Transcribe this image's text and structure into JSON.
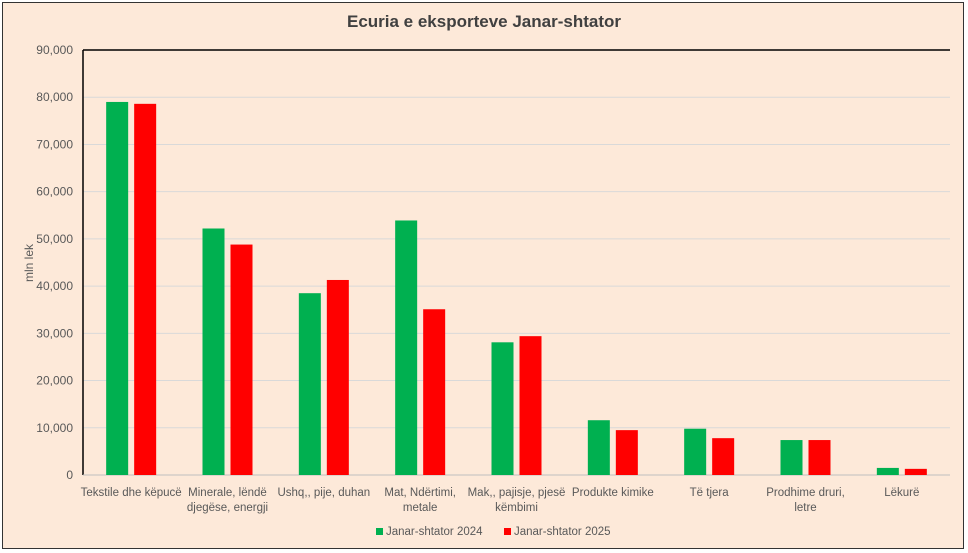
{
  "chart_data": {
    "type": "bar",
    "title": "Ecuria e eksporteve Janar-shtator",
    "xlabel": "",
    "ylabel": "mln lek",
    "ylim": [
      0,
      90000
    ],
    "yticks": [
      "0",
      "10,000",
      "20,000",
      "30,000",
      "40,000",
      "50,000",
      "60,000",
      "70,000",
      "80,000",
      "90,000"
    ],
    "grid": true,
    "legend_position": "bottom",
    "categories": [
      [
        "Tekstile dhe këpucë"
      ],
      [
        "Minerale, lëndë",
        "djegëse, energji"
      ],
      [
        "Ushq,, pije, duhan"
      ],
      [
        "Mat, Ndërtimi,",
        "metale"
      ],
      [
        "Mak,, pajisje, pjesë",
        "këmbimi"
      ],
      [
        "Produkte kimike"
      ],
      [
        "Të tjera"
      ],
      [
        "Prodhime druri,",
        "letre"
      ],
      [
        "Lëkurë"
      ]
    ],
    "series": [
      {
        "name": "Janar-shtator 2024",
        "color": "#00b050",
        "values": [
          79000,
          52200,
          38500,
          53900,
          28100,
          11600,
          9800,
          7400,
          1500
        ]
      },
      {
        "name": "Janar-shtator 2025",
        "color": "#ff0000",
        "values": [
          78600,
          48800,
          41300,
          35100,
          29400,
          9500,
          7800,
          7400,
          1300
        ]
      }
    ]
  }
}
